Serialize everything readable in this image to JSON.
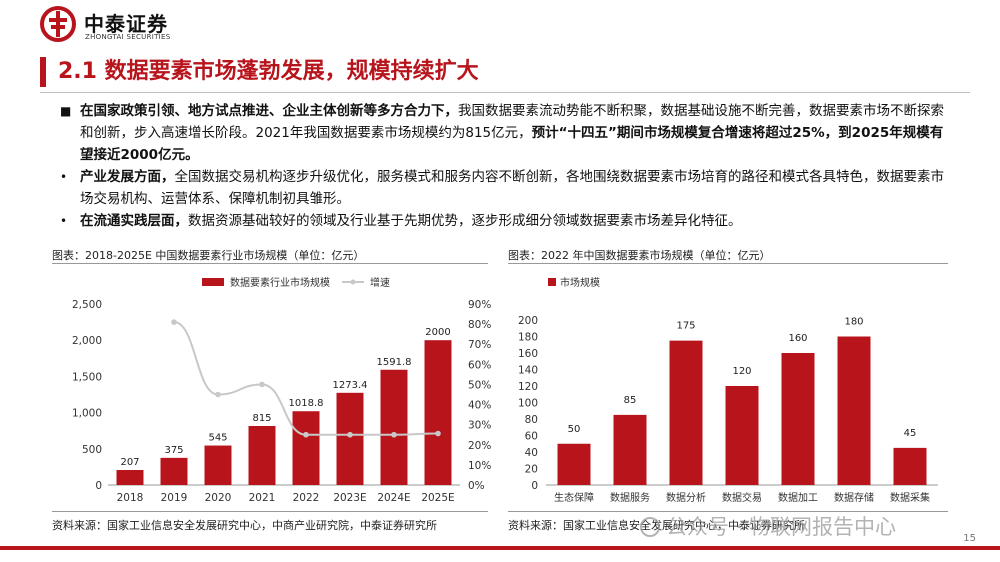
{
  "brand": {
    "name_cn": "中泰证券",
    "name_en": "ZHONGTAI SECURITIES",
    "accent": "#b8141c"
  },
  "title": "2.1 数据要素市场蓬勃发展，规模持续扩大",
  "bullets": [
    {
      "mark": "■",
      "parts": [
        {
          "text": "在国家政策引领、地方试点推进、企业主体创新等多方合力下，",
          "bold": true
        },
        {
          "text": "我国数据要素流动势能不断积聚，数据基础设施不断完善，数据要素市场不断探索和创新，步入高速增长阶段。2021年我国数据要素市场规模约为815亿元，",
          "bold": false
        },
        {
          "text": "预计“十四五”期间市场规模复合增速将超过25%，到2025年规模有望接近2000亿元。",
          "bold": true
        }
      ]
    },
    {
      "mark": "•",
      "parts": [
        {
          "text": "产业发展方面，",
          "bold": true
        },
        {
          "text": "全国数据交易机构逐步升级优化，服务模式和服务内容不断创新，各地围绕数据要素市场培育的路径和模式各具特色，数据要素市场交易机构、运营体系、保障机制初具雏形。",
          "bold": false
        }
      ]
    },
    {
      "mark": "•",
      "parts": [
        {
          "text": "在流通实践层面，",
          "bold": true
        },
        {
          "text": "数据资源基础较好的领域及行业基于先期优势，逐步形成细分领域数据要素市场差异化特征。",
          "bold": false
        }
      ]
    }
  ],
  "chart_data": [
    {
      "type": "bar+line",
      "title": "图表：2018-2025E 中国数据要素行业市场规模（单位：亿元）",
      "categories": [
        "2018",
        "2019",
        "2020",
        "2021",
        "2022",
        "2023E",
        "2024E",
        "2025E"
      ],
      "series": [
        {
          "name": "数据要素行业市场规模",
          "type": "bar",
          "axis": "left",
          "values": [
            207,
            375,
            545,
            815,
            1018.8,
            1273.4,
            1591.8,
            2000
          ],
          "labels": [
            "207",
            "375",
            "545",
            "815",
            "1018.8",
            "1273.4",
            "1591.8",
            "2000"
          ]
        },
        {
          "name": "增速",
          "type": "line",
          "axis": "right",
          "values": [
            null,
            81,
            45,
            50,
            25,
            25,
            25,
            25.6
          ]
        }
      ],
      "ylim": [
        0,
        2500
      ],
      "yticks": [
        0,
        500,
        1000,
        1500,
        2000,
        2500
      ],
      "ytick_labels": [
        "0",
        "500",
        "1,000",
        "1,500",
        "2,000",
        "2,500"
      ],
      "y2lim": [
        0,
        90
      ],
      "y2ticks": [
        0,
        10,
        20,
        30,
        40,
        50,
        60,
        70,
        80,
        90
      ],
      "y2tick_labels": [
        "0%",
        "10%",
        "20%",
        "30%",
        "40%",
        "50%",
        "60%",
        "70%",
        "80%",
        "90%"
      ],
      "legend": "top",
      "colors": {
        "bar": "#b8141c",
        "line": "#c8c8c8"
      },
      "source": "资料来源：国家工业信息安全发展研究中心，中商产业研究院，中泰证券研究所"
    },
    {
      "type": "bar",
      "title": "图表：2022 年中国数据要素市场规模（单位：亿元）",
      "categories": [
        "生态保障",
        "数据服务",
        "数据分析",
        "数据交易",
        "数据加工",
        "数据存储",
        "数据采集"
      ],
      "series": [
        {
          "name": "市场规模",
          "values": [
            50,
            85,
            175,
            120,
            160,
            180,
            45
          ]
        }
      ],
      "ylim": [
        0,
        200
      ],
      "yticks": [
        0,
        20,
        40,
        60,
        80,
        100,
        120,
        140,
        160,
        180,
        200
      ],
      "legend": "top-left",
      "colors": {
        "bar": "#b8141c"
      },
      "source": "资料来源：国家工业信息安全发展研究中心，中泰证券研究所"
    }
  ],
  "watermark": "公众号 · 物联网报告中心",
  "page_number": "15"
}
